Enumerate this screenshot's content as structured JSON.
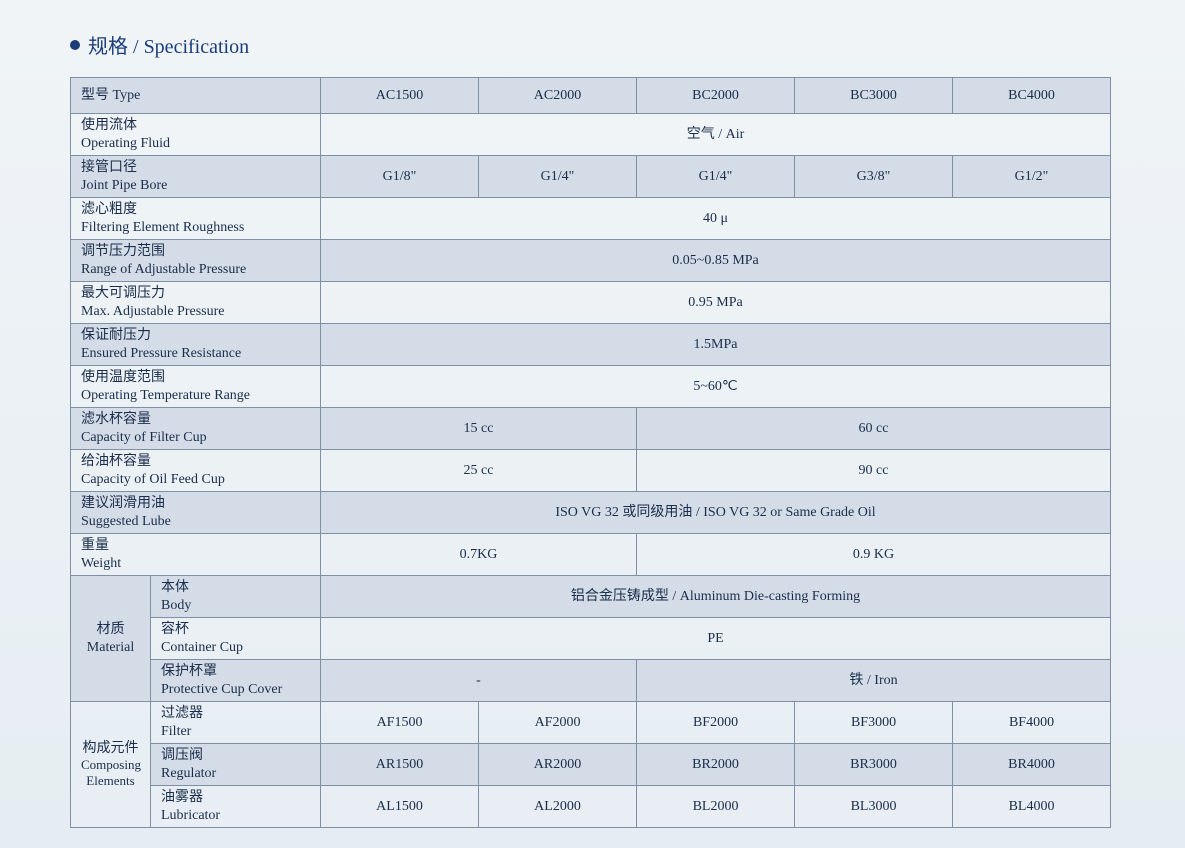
{
  "heading": {
    "cn": "规格",
    "sep": " / ",
    "en": "Specification"
  },
  "colors": {
    "bullet": "#1a3d7a",
    "border": "#8090a4",
    "header_bg": "#d4dce8",
    "text": "#1a2d4a",
    "page_bg_top": "#f0f4f7",
    "page_bg_bot": "#e6edf2"
  },
  "row_type": {
    "label_cn": "型号",
    "label_en": "Type",
    "v": [
      "AC1500",
      "AC2000",
      "BC2000",
      "BC3000",
      "BC4000"
    ]
  },
  "row_fluid": {
    "label_cn": "使用流体",
    "label_en": "Operating Fluid",
    "v": "空气 / Air"
  },
  "row_bore": {
    "label_cn": "接管口径",
    "label_en": "Joint Pipe Bore",
    "v": [
      "G1/8\"",
      "G1/4\"",
      "G1/4\"",
      "G3/8\"",
      "G1/2\""
    ]
  },
  "row_rough": {
    "label_cn": "滤心粗度",
    "label_en": "Filtering Element Roughness",
    "v": "40 μ"
  },
  "row_range": {
    "label_cn": "调节压力范围",
    "label_en": "Range of Adjustable Pressure",
    "v": "0.05~0.85 MPa"
  },
  "row_max": {
    "label_cn": "最大可调压力",
    "label_en": "Max. Adjustable Pressure",
    "v": "0.95 MPa"
  },
  "row_ensured": {
    "label_cn": "保证耐压力",
    "label_en": "Ensured Pressure Resistance",
    "v": "1.5MPa"
  },
  "row_temp": {
    "label_cn": "使用温度范围",
    "label_en": "Operating Temperature Range",
    "v": "5~60℃"
  },
  "row_filtercup": {
    "label_cn": "滤水杯容量",
    "label_en": "Capacity of Filter Cup",
    "v2": "15 cc",
    "v3": "60 cc"
  },
  "row_oilcup": {
    "label_cn": "给油杯容量",
    "label_en": "Capacity of Oil Feed Cup",
    "v2": "25 cc",
    "v3": "90 cc"
  },
  "row_lube": {
    "label_cn": "建议润滑用油",
    "label_en": "Suggested Lube",
    "v": "ISO VG 32 或同级用油 / ISO VG 32 or Same Grade Oil"
  },
  "row_weight": {
    "label_cn": "重量",
    "label_en": "Weight",
    "v2": "0.7KG",
    "v3": "0.9 KG"
  },
  "group_material": {
    "label_cn": "材质",
    "label_en": "Material"
  },
  "row_body": {
    "label_cn": "本体",
    "label_en": "Body",
    "v": "铝合金压铸成型 / Aluminum Die-casting Forming"
  },
  "row_cup": {
    "label_cn": "容杯",
    "label_en": "Container Cup",
    "v": "PE"
  },
  "row_cover": {
    "label_cn": "保护杯罩",
    "label_en": "Protective Cup Cover",
    "v2": "-",
    "v3": "铁 / Iron"
  },
  "group_comp": {
    "label_cn": "构成元件",
    "label_en": "Composing Elements"
  },
  "row_filter": {
    "label_cn": "过滤器",
    "label_en": "Filter",
    "v": [
      "AF1500",
      "AF2000",
      "BF2000",
      "BF3000",
      "BF4000"
    ]
  },
  "row_reg": {
    "label_cn": "调压阀",
    "label_en": "Regulator",
    "v": [
      "AR1500",
      "AR2000",
      "BR2000",
      "BR3000",
      "BR4000"
    ]
  },
  "row_lubr": {
    "label_cn": "油雾器",
    "label_en": "Lubricator",
    "v": [
      "AL1500",
      "AL2000",
      "BL2000",
      "BL3000",
      "BL4000"
    ]
  }
}
